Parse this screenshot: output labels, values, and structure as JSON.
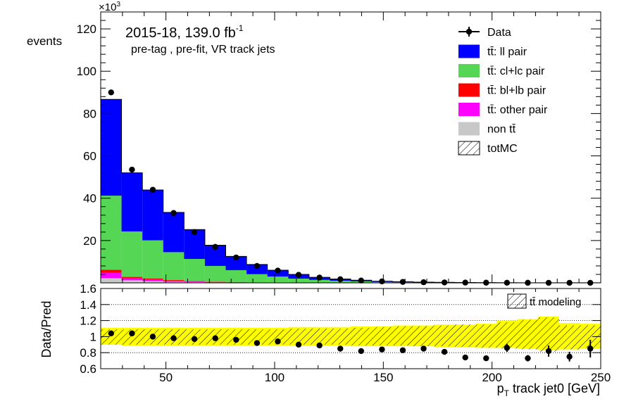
{
  "chart_data": [
    {
      "type": "bar",
      "subtype": "stacked-histogram",
      "title": "2015-18, 139.0 fb",
      "title_superscript": "-1",
      "subtitle": "pre-tag ,  pre-fit, VR track jets",
      "ylabel": "events",
      "y_multiplier_label": "×10",
      "y_multiplier_exponent": "3",
      "xlim": [
        20,
        250
      ],
      "ylim": [
        0,
        128000
      ],
      "yticks": [
        20000,
        40000,
        60000,
        80000,
        100000,
        120000
      ],
      "ytick_labels": [
        "20",
        "40",
        "60",
        "80",
        "100",
        "120"
      ],
      "bin_edges": [
        20,
        29.58,
        39.17,
        48.75,
        58.33,
        67.92,
        77.5,
        87.08,
        96.67,
        106.25,
        115.83,
        125.42,
        135,
        144.58,
        154.17,
        163.75,
        173.33,
        182.92,
        192.5,
        202.08,
        211.67,
        221.25,
        230.83,
        240.42,
        250
      ],
      "legend_position": "top-right",
      "legend": [
        {
          "key": "data",
          "label": "Data",
          "style": "marker",
          "color": "#000000"
        },
        {
          "key": "ll",
          "label": "tt̄: ll pair",
          "style": "fill",
          "color": "#0000ff"
        },
        {
          "key": "cl",
          "label": "tt̄: cl+lc pair",
          "style": "fill",
          "color": "#55d655"
        },
        {
          "key": "bl",
          "label": "tt̄: bl+lb pair",
          "style": "fill",
          "color": "#ff0000"
        },
        {
          "key": "other",
          "label": "tt̄: other pair",
          "style": "fill",
          "color": "#ff00ff"
        },
        {
          "key": "nontt",
          "label": "non tt̄",
          "style": "fill",
          "color": "#c8c8c8"
        },
        {
          "key": "totmc",
          "label": "totMC",
          "style": "hatch",
          "color": "#000000"
        }
      ],
      "series": [
        {
          "name": "non tt̄",
          "color": "#c8c8c8",
          "values": [
            2200,
            1200,
            800,
            500,
            300,
            200,
            150,
            100,
            80,
            60,
            40,
            30,
            20,
            15,
            10,
            8,
            6,
            5,
            4,
            3,
            2,
            2,
            1,
            1
          ]
        },
        {
          "name": "tt̄: other pair",
          "color": "#ff00ff",
          "values": [
            2500,
            1000,
            800,
            500,
            300,
            200,
            150,
            100,
            80,
            60,
            40,
            30,
            20,
            15,
            10,
            8,
            6,
            5,
            4,
            3,
            2,
            2,
            1,
            1
          ]
        },
        {
          "name": "tt̄: bl+lb pair",
          "color": "#ff0000",
          "values": [
            1500,
            600,
            500,
            300,
            200,
            150,
            100,
            70,
            50,
            40,
            30,
            20,
            15,
            10,
            8,
            6,
            5,
            4,
            3,
            2,
            2,
            1,
            1,
            1
          ]
        },
        {
          "name": "tt̄: cl+lc pair",
          "color": "#55d655",
          "values": [
            35000,
            21500,
            18000,
            13200,
            10500,
            7450,
            5600,
            3830,
            2790,
            1840,
            1290,
            920,
            645,
            400,
            262,
            178,
            123,
            86,
            59,
            42,
            32,
            25,
            18,
            13
          ]
        },
        {
          "name": "tt̄: ll pair",
          "color": "#0000ff",
          "values": [
            45500,
            27700,
            23800,
            18800,
            13900,
            9800,
            6500,
            4600,
            3000,
            2000,
            1200,
            820,
            550,
            360,
            230,
            150,
            100,
            70,
            50,
            35,
            24,
            18,
            13,
            9
          ]
        }
      ],
      "data_points": {
        "name": "Data",
        "x": [
          24.79,
          34.38,
          43.96,
          53.54,
          63.13,
          72.71,
          82.29,
          91.88,
          101.46,
          111.04,
          120.63,
          130.21,
          139.79,
          149.38,
          158.96,
          168.54,
          178.13,
          187.71,
          197.29,
          206.88,
          216.46,
          226.04,
          235.63,
          245.21
        ],
        "y": [
          90000,
          53500,
          44000,
          33000,
          24000,
          17000,
          12000,
          8000,
          5800,
          3800,
          2500,
          1700,
          1100,
          700,
          450,
          300,
          200,
          130,
          90,
          60,
          40,
          28,
          20,
          14
        ]
      }
    },
    {
      "type": "scatter",
      "subtype": "ratio-panel",
      "ylabel": "Data/Pred",
      "xlabel": "p",
      "xlabel_subscript": "T",
      "xlabel_rest": " track jet0 [GeV]",
      "xlim": [
        20,
        250
      ],
      "ylim": [
        0.6,
        1.6
      ],
      "xticks": [
        50,
        100,
        150,
        200,
        250
      ],
      "xtick_labels": [
        "50",
        "100",
        "150",
        "200",
        "250"
      ],
      "yticks": [
        0.6,
        0.8,
        1.0,
        1.2,
        1.4,
        1.6
      ],
      "ytick_labels": [
        "0.6",
        "0.8",
        "1",
        "1.2",
        "1.4",
        "1.6"
      ],
      "gridlines_y": [
        0.8,
        1.0,
        1.2,
        1.4
      ],
      "band_color": "#ffff00",
      "legend": [
        {
          "label": "tt̄ modeling",
          "style": "hatch"
        }
      ],
      "band_lower": [
        0.9,
        0.89,
        0.89,
        0.89,
        0.89,
        0.89,
        0.89,
        0.89,
        0.89,
        0.89,
        0.89,
        0.89,
        0.88,
        0.88,
        0.88,
        0.88,
        0.87,
        0.87,
        0.86,
        0.86,
        0.85,
        0.83,
        0.84,
        0.85
      ],
      "band_upper": [
        1.11,
        1.11,
        1.11,
        1.11,
        1.11,
        1.11,
        1.11,
        1.11,
        1.11,
        1.12,
        1.12,
        1.12,
        1.13,
        1.13,
        1.14,
        1.14,
        1.15,
        1.15,
        1.16,
        1.2,
        1.22,
        1.25,
        1.17,
        1.16
      ],
      "hatch_lower": [
        0.9,
        0.9,
        0.9,
        0.9,
        0.9,
        0.9,
        0.9,
        0.9,
        0.9,
        0.9,
        0.9,
        0.9,
        0.89,
        0.89,
        0.89,
        0.88,
        0.88,
        0.87,
        0.86,
        0.85,
        0.84,
        0.81,
        0.84,
        0.86
      ],
      "hatch_upper": [
        1.09,
        1.09,
        1.09,
        1.09,
        1.09,
        1.09,
        1.09,
        1.09,
        1.09,
        1.1,
        1.1,
        1.1,
        1.11,
        1.12,
        1.13,
        1.13,
        1.14,
        1.15,
        1.15,
        1.18,
        1.21,
        1.24,
        1.14,
        1.14
      ],
      "points": {
        "x": [
          24.79,
          34.38,
          43.96,
          53.54,
          63.13,
          72.71,
          82.29,
          91.88,
          101.46,
          111.04,
          120.63,
          130.21,
          139.79,
          149.38,
          158.96,
          168.54,
          178.13,
          187.71,
          197.29,
          206.88,
          216.46,
          226.04,
          235.63,
          245.21
        ],
        "y": [
          1.04,
          1.04,
          1.0,
          0.98,
          0.97,
          0.98,
          0.96,
          0.92,
          0.94,
          0.9,
          0.89,
          0.85,
          0.82,
          0.84,
          0.83,
          0.85,
          0.81,
          0.74,
          0.73,
          0.86,
          0.73,
          0.82,
          0.75,
          0.85
        ],
        "yerr": [
          0.01,
          0.01,
          0.01,
          0.01,
          0.01,
          0.01,
          0.01,
          0.01,
          0.01,
          0.01,
          0.01,
          0.01,
          0.01,
          0.01,
          0.02,
          0.02,
          0.02,
          0.03,
          0.03,
          0.05,
          0.04,
          0.07,
          0.06,
          0.11
        ]
      }
    }
  ]
}
